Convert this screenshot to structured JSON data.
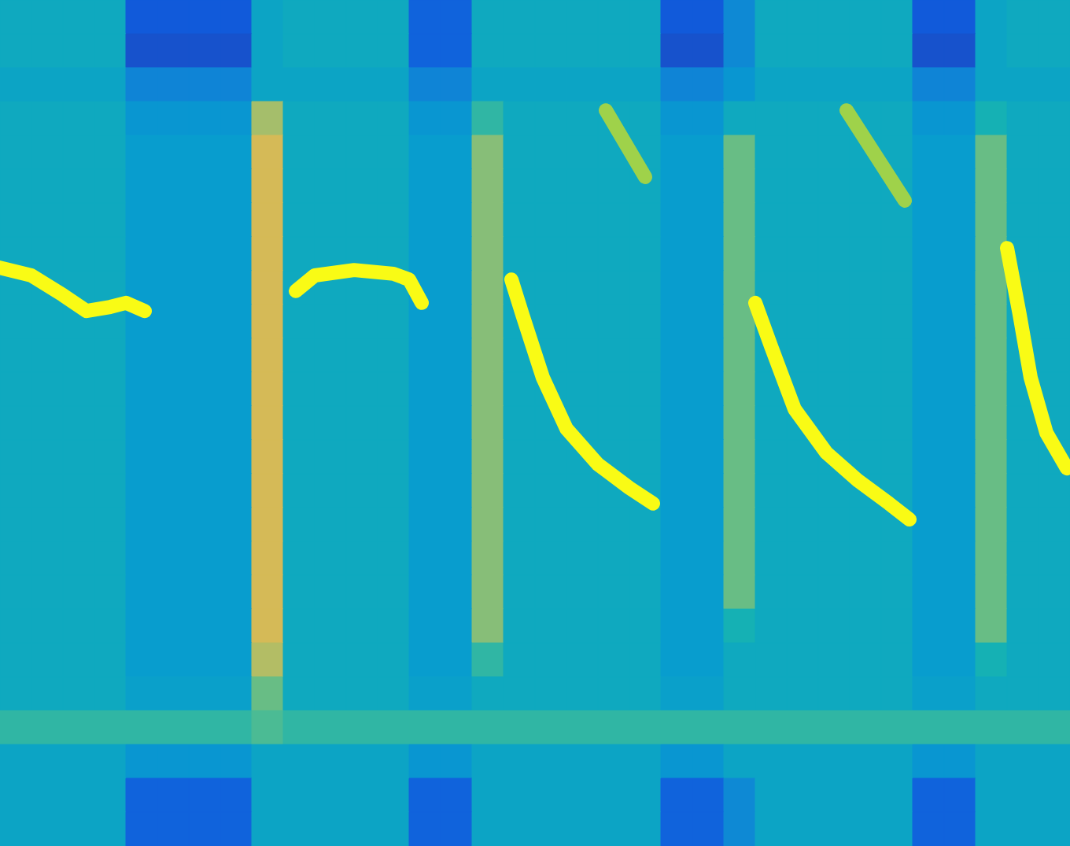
{
  "chart_data": {
    "type": "heatmap",
    "xlim": [
      0,
      34
    ],
    "ylim": [
      0,
      25
    ],
    "clim": [
      0,
      1
    ],
    "tick_labels": false,
    "grid": false,
    "cells": [
      [
        0.45,
        0.45,
        0.45,
        0.45,
        0.12,
        0.12,
        0.12,
        0.12,
        0.42,
        0.45,
        0.45,
        0.45,
        0.45,
        0.15,
        0.15,
        0.45,
        0.45,
        0.45,
        0.45,
        0.45,
        0.45,
        0.12,
        0.12,
        0.3,
        0.45,
        0.45,
        0.45,
        0.45,
        0.45,
        0.12,
        0.12,
        0.42,
        0.45,
        0.45
      ],
      [
        0.45,
        0.45,
        0.45,
        0.45,
        0.1,
        0.1,
        0.1,
        0.1,
        0.42,
        0.45,
        0.45,
        0.45,
        0.45,
        0.15,
        0.15,
        0.45,
        0.45,
        0.45,
        0.45,
        0.45,
        0.45,
        0.1,
        0.1,
        0.3,
        0.45,
        0.45,
        0.45,
        0.45,
        0.45,
        0.1,
        0.1,
        0.42,
        0.45,
        0.45
      ],
      [
        0.42,
        0.42,
        0.42,
        0.42,
        0.28,
        0.28,
        0.28,
        0.28,
        0.42,
        0.42,
        0.42,
        0.42,
        0.42,
        0.28,
        0.28,
        0.42,
        0.42,
        0.42,
        0.42,
        0.42,
        0.42,
        0.28,
        0.28,
        0.35,
        0.42,
        0.42,
        0.42,
        0.42,
        0.42,
        0.28,
        0.28,
        0.42,
        0.42,
        0.42
      ],
      [
        0.45,
        0.45,
        0.45,
        0.45,
        0.35,
        0.35,
        0.35,
        0.35,
        0.75,
        0.45,
        0.45,
        0.45,
        0.45,
        0.35,
        0.35,
        0.55,
        0.45,
        0.45,
        0.45,
        0.45,
        0.45,
        0.35,
        0.35,
        0.45,
        0.45,
        0.45,
        0.45,
        0.45,
        0.45,
        0.35,
        0.35,
        0.5,
        0.45,
        0.45
      ],
      [
        0.45,
        0.45,
        0.45,
        0.45,
        0.38,
        0.38,
        0.38,
        0.38,
        0.85,
        0.45,
        0.45,
        0.45,
        0.45,
        0.38,
        0.38,
        0.7,
        0.45,
        0.45,
        0.45,
        0.45,
        0.45,
        0.38,
        0.38,
        0.65,
        0.45,
        0.45,
        0.45,
        0.45,
        0.45,
        0.38,
        0.38,
        0.65,
        0.45,
        0.45
      ],
      [
        0.45,
        0.45,
        0.45,
        0.45,
        0.38,
        0.38,
        0.38,
        0.38,
        0.85,
        0.45,
        0.45,
        0.45,
        0.45,
        0.38,
        0.38,
        0.7,
        0.45,
        0.45,
        0.45,
        0.45,
        0.45,
        0.38,
        0.38,
        0.65,
        0.45,
        0.45,
        0.45,
        0.45,
        0.45,
        0.38,
        0.38,
        0.65,
        0.45,
        0.45
      ],
      [
        0.45,
        0.45,
        0.45,
        0.45,
        0.38,
        0.38,
        0.38,
        0.38,
        0.85,
        0.45,
        0.45,
        0.45,
        0.45,
        0.38,
        0.38,
        0.7,
        0.45,
        0.45,
        0.45,
        0.45,
        0.45,
        0.38,
        0.38,
        0.65,
        0.45,
        0.45,
        0.45,
        0.45,
        0.45,
        0.38,
        0.38,
        0.65,
        0.45,
        0.45
      ],
      [
        0.45,
        0.45,
        0.45,
        0.45,
        0.38,
        0.38,
        0.38,
        0.38,
        0.85,
        0.45,
        0.45,
        0.45,
        0.45,
        0.38,
        0.38,
        0.7,
        0.45,
        0.45,
        0.45,
        0.45,
        0.45,
        0.38,
        0.38,
        0.65,
        0.45,
        0.45,
        0.45,
        0.45,
        0.45,
        0.38,
        0.38,
        0.65,
        0.45,
        0.45
      ],
      [
        0.45,
        0.45,
        0.45,
        0.45,
        0.38,
        0.38,
        0.38,
        0.38,
        0.85,
        0.45,
        0.45,
        0.45,
        0.45,
        0.38,
        0.38,
        0.7,
        0.45,
        0.45,
        0.45,
        0.45,
        0.45,
        0.38,
        0.38,
        0.65,
        0.45,
        0.45,
        0.45,
        0.45,
        0.45,
        0.38,
        0.38,
        0.65,
        0.45,
        0.45
      ],
      [
        0.45,
        0.45,
        0.45,
        0.45,
        0.38,
        0.38,
        0.38,
        0.38,
        0.85,
        0.45,
        0.45,
        0.45,
        0.45,
        0.38,
        0.38,
        0.7,
        0.45,
        0.45,
        0.45,
        0.45,
        0.45,
        0.38,
        0.38,
        0.65,
        0.45,
        0.45,
        0.45,
        0.45,
        0.45,
        0.38,
        0.38,
        0.65,
        0.45,
        0.45
      ],
      [
        0.45,
        0.45,
        0.45,
        0.45,
        0.38,
        0.38,
        0.38,
        0.38,
        0.85,
        0.45,
        0.45,
        0.45,
        0.45,
        0.38,
        0.38,
        0.7,
        0.45,
        0.45,
        0.45,
        0.45,
        0.45,
        0.38,
        0.38,
        0.65,
        0.45,
        0.45,
        0.45,
        0.45,
        0.45,
        0.38,
        0.38,
        0.65,
        0.45,
        0.45
      ],
      [
        0.45,
        0.45,
        0.45,
        0.45,
        0.38,
        0.38,
        0.38,
        0.38,
        0.85,
        0.45,
        0.45,
        0.45,
        0.45,
        0.38,
        0.38,
        0.7,
        0.45,
        0.45,
        0.45,
        0.45,
        0.45,
        0.38,
        0.38,
        0.65,
        0.45,
        0.45,
        0.45,
        0.45,
        0.45,
        0.38,
        0.38,
        0.65,
        0.45,
        0.45
      ],
      [
        0.45,
        0.45,
        0.45,
        0.45,
        0.38,
        0.38,
        0.38,
        0.38,
        0.85,
        0.45,
        0.45,
        0.45,
        0.45,
        0.38,
        0.38,
        0.7,
        0.45,
        0.45,
        0.45,
        0.45,
        0.45,
        0.38,
        0.38,
        0.65,
        0.45,
        0.45,
        0.45,
        0.45,
        0.45,
        0.38,
        0.38,
        0.65,
        0.45,
        0.45
      ],
      [
        0.45,
        0.45,
        0.45,
        0.45,
        0.38,
        0.38,
        0.38,
        0.38,
        0.85,
        0.45,
        0.45,
        0.45,
        0.45,
        0.38,
        0.38,
        0.7,
        0.45,
        0.45,
        0.45,
        0.45,
        0.45,
        0.38,
        0.38,
        0.65,
        0.45,
        0.45,
        0.45,
        0.45,
        0.45,
        0.38,
        0.38,
        0.65,
        0.45,
        0.45
      ],
      [
        0.45,
        0.45,
        0.45,
        0.45,
        0.38,
        0.38,
        0.38,
        0.38,
        0.85,
        0.45,
        0.45,
        0.45,
        0.45,
        0.38,
        0.38,
        0.7,
        0.45,
        0.45,
        0.45,
        0.45,
        0.45,
        0.38,
        0.38,
        0.65,
        0.45,
        0.45,
        0.45,
        0.45,
        0.45,
        0.38,
        0.38,
        0.65,
        0.45,
        0.45
      ],
      [
        0.45,
        0.45,
        0.45,
        0.45,
        0.38,
        0.38,
        0.38,
        0.38,
        0.85,
        0.45,
        0.45,
        0.45,
        0.45,
        0.38,
        0.38,
        0.7,
        0.45,
        0.45,
        0.45,
        0.45,
        0.45,
        0.38,
        0.38,
        0.65,
        0.45,
        0.45,
        0.45,
        0.45,
        0.45,
        0.38,
        0.38,
        0.65,
        0.45,
        0.45
      ],
      [
        0.45,
        0.45,
        0.45,
        0.45,
        0.38,
        0.38,
        0.38,
        0.38,
        0.85,
        0.45,
        0.45,
        0.45,
        0.45,
        0.38,
        0.38,
        0.7,
        0.45,
        0.45,
        0.45,
        0.45,
        0.45,
        0.38,
        0.38,
        0.65,
        0.45,
        0.45,
        0.45,
        0.45,
        0.45,
        0.38,
        0.38,
        0.65,
        0.45,
        0.45
      ],
      [
        0.45,
        0.45,
        0.45,
        0.45,
        0.38,
        0.38,
        0.38,
        0.38,
        0.85,
        0.45,
        0.45,
        0.45,
        0.45,
        0.38,
        0.38,
        0.7,
        0.45,
        0.45,
        0.45,
        0.45,
        0.45,
        0.38,
        0.38,
        0.65,
        0.45,
        0.45,
        0.45,
        0.45,
        0.45,
        0.38,
        0.38,
        0.65,
        0.45,
        0.45
      ],
      [
        0.45,
        0.45,
        0.45,
        0.45,
        0.38,
        0.38,
        0.38,
        0.38,
        0.85,
        0.45,
        0.45,
        0.45,
        0.45,
        0.38,
        0.38,
        0.7,
        0.45,
        0.45,
        0.45,
        0.45,
        0.45,
        0.38,
        0.38,
        0.5,
        0.45,
        0.45,
        0.45,
        0.45,
        0.45,
        0.38,
        0.38,
        0.65,
        0.45,
        0.45
      ],
      [
        0.45,
        0.45,
        0.45,
        0.45,
        0.38,
        0.38,
        0.38,
        0.38,
        0.78,
        0.45,
        0.45,
        0.45,
        0.45,
        0.38,
        0.38,
        0.55,
        0.45,
        0.45,
        0.45,
        0.45,
        0.45,
        0.38,
        0.38,
        0.45,
        0.45,
        0.45,
        0.45,
        0.45,
        0.45,
        0.38,
        0.38,
        0.5,
        0.45,
        0.45
      ],
      [
        0.45,
        0.45,
        0.45,
        0.45,
        0.4,
        0.4,
        0.4,
        0.4,
        0.65,
        0.45,
        0.45,
        0.45,
        0.45,
        0.4,
        0.4,
        0.45,
        0.45,
        0.45,
        0.45,
        0.45,
        0.45,
        0.4,
        0.4,
        0.45,
        0.45,
        0.45,
        0.45,
        0.45,
        0.45,
        0.4,
        0.4,
        0.45,
        0.45,
        0.45
      ],
      [
        0.55,
        0.55,
        0.55,
        0.55,
        0.55,
        0.55,
        0.55,
        0.55,
        0.6,
        0.55,
        0.55,
        0.55,
        0.55,
        0.55,
        0.55,
        0.55,
        0.55,
        0.55,
        0.55,
        0.55,
        0.55,
        0.55,
        0.55,
        0.55,
        0.55,
        0.55,
        0.55,
        0.55,
        0.55,
        0.55,
        0.55,
        0.55,
        0.55,
        0.55
      ],
      [
        0.42,
        0.42,
        0.42,
        0.42,
        0.35,
        0.35,
        0.35,
        0.35,
        0.42,
        0.42,
        0.42,
        0.42,
        0.42,
        0.35,
        0.35,
        0.42,
        0.42,
        0.42,
        0.42,
        0.42,
        0.42,
        0.35,
        0.35,
        0.42,
        0.42,
        0.42,
        0.42,
        0.42,
        0.42,
        0.35,
        0.35,
        0.42,
        0.42,
        0.42
      ],
      [
        0.42,
        0.42,
        0.42,
        0.42,
        0.15,
        0.15,
        0.15,
        0.15,
        0.42,
        0.42,
        0.42,
        0.42,
        0.42,
        0.15,
        0.15,
        0.42,
        0.42,
        0.42,
        0.42,
        0.42,
        0.42,
        0.15,
        0.15,
        0.3,
        0.42,
        0.42,
        0.42,
        0.42,
        0.42,
        0.15,
        0.15,
        0.42,
        0.42,
        0.42
      ],
      [
        0.42,
        0.42,
        0.42,
        0.42,
        0.15,
        0.15,
        0.15,
        0.15,
        0.42,
        0.42,
        0.42,
        0.42,
        0.42,
        0.15,
        0.15,
        0.42,
        0.42,
        0.42,
        0.42,
        0.42,
        0.42,
        0.15,
        0.15,
        0.3,
        0.42,
        0.42,
        0.42,
        0.42,
        0.42,
        0.15,
        0.15,
        0.42,
        0.42,
        0.42
      ]
    ],
    "series": [
      {
        "type": "line",
        "color": "#f9fb15",
        "x": [
          0,
          1,
          2,
          2.75,
          3.5,
          4,
          4.6
        ],
        "values": [
          17.09,
          16.86,
          16.28,
          15.81,
          15.93,
          16.05,
          15.81
        ]
      },
      {
        "type": "line",
        "color": "#f9fb15",
        "x": [
          9.4,
          10,
          11.25,
          12.5,
          13,
          13.4
        ],
        "values": [
          16.4,
          16.86,
          17.02,
          16.91,
          16.74,
          16.05
        ]
      },
      {
        "type": "line",
        "color": "#f9fb15",
        "x": [
          16.25,
          16.6,
          17.25,
          18,
          19,
          20,
          20.75
        ],
        "values": [
          16.74,
          15.7,
          13.84,
          12.33,
          11.28,
          10.58,
          10.12
        ]
      },
      {
        "type": "line",
        "color": "#f9fb15",
        "x": [
          24,
          24.5,
          25.25,
          26.25,
          27.25,
          28.25,
          28.9
        ],
        "values": [
          16.05,
          14.77,
          12.91,
          11.63,
          10.81,
          10.12,
          9.65
        ]
      },
      {
        "type": "line",
        "color": "#f9fb15",
        "x": [
          32,
          32.4,
          32.75,
          33.25,
          33.9
        ],
        "values": [
          17.67,
          15.7,
          13.84,
          12.21,
          11.16
        ]
      },
      {
        "type": "line",
        "color": "#9fd24a",
        "x": [
          19.25,
          20.5
        ],
        "values": [
          21.74,
          19.77
        ]
      },
      {
        "type": "line",
        "color": "#9fd24a",
        "x": [
          26.9,
          28.75
        ],
        "values": [
          21.74,
          19.07
        ]
      }
    ]
  }
}
